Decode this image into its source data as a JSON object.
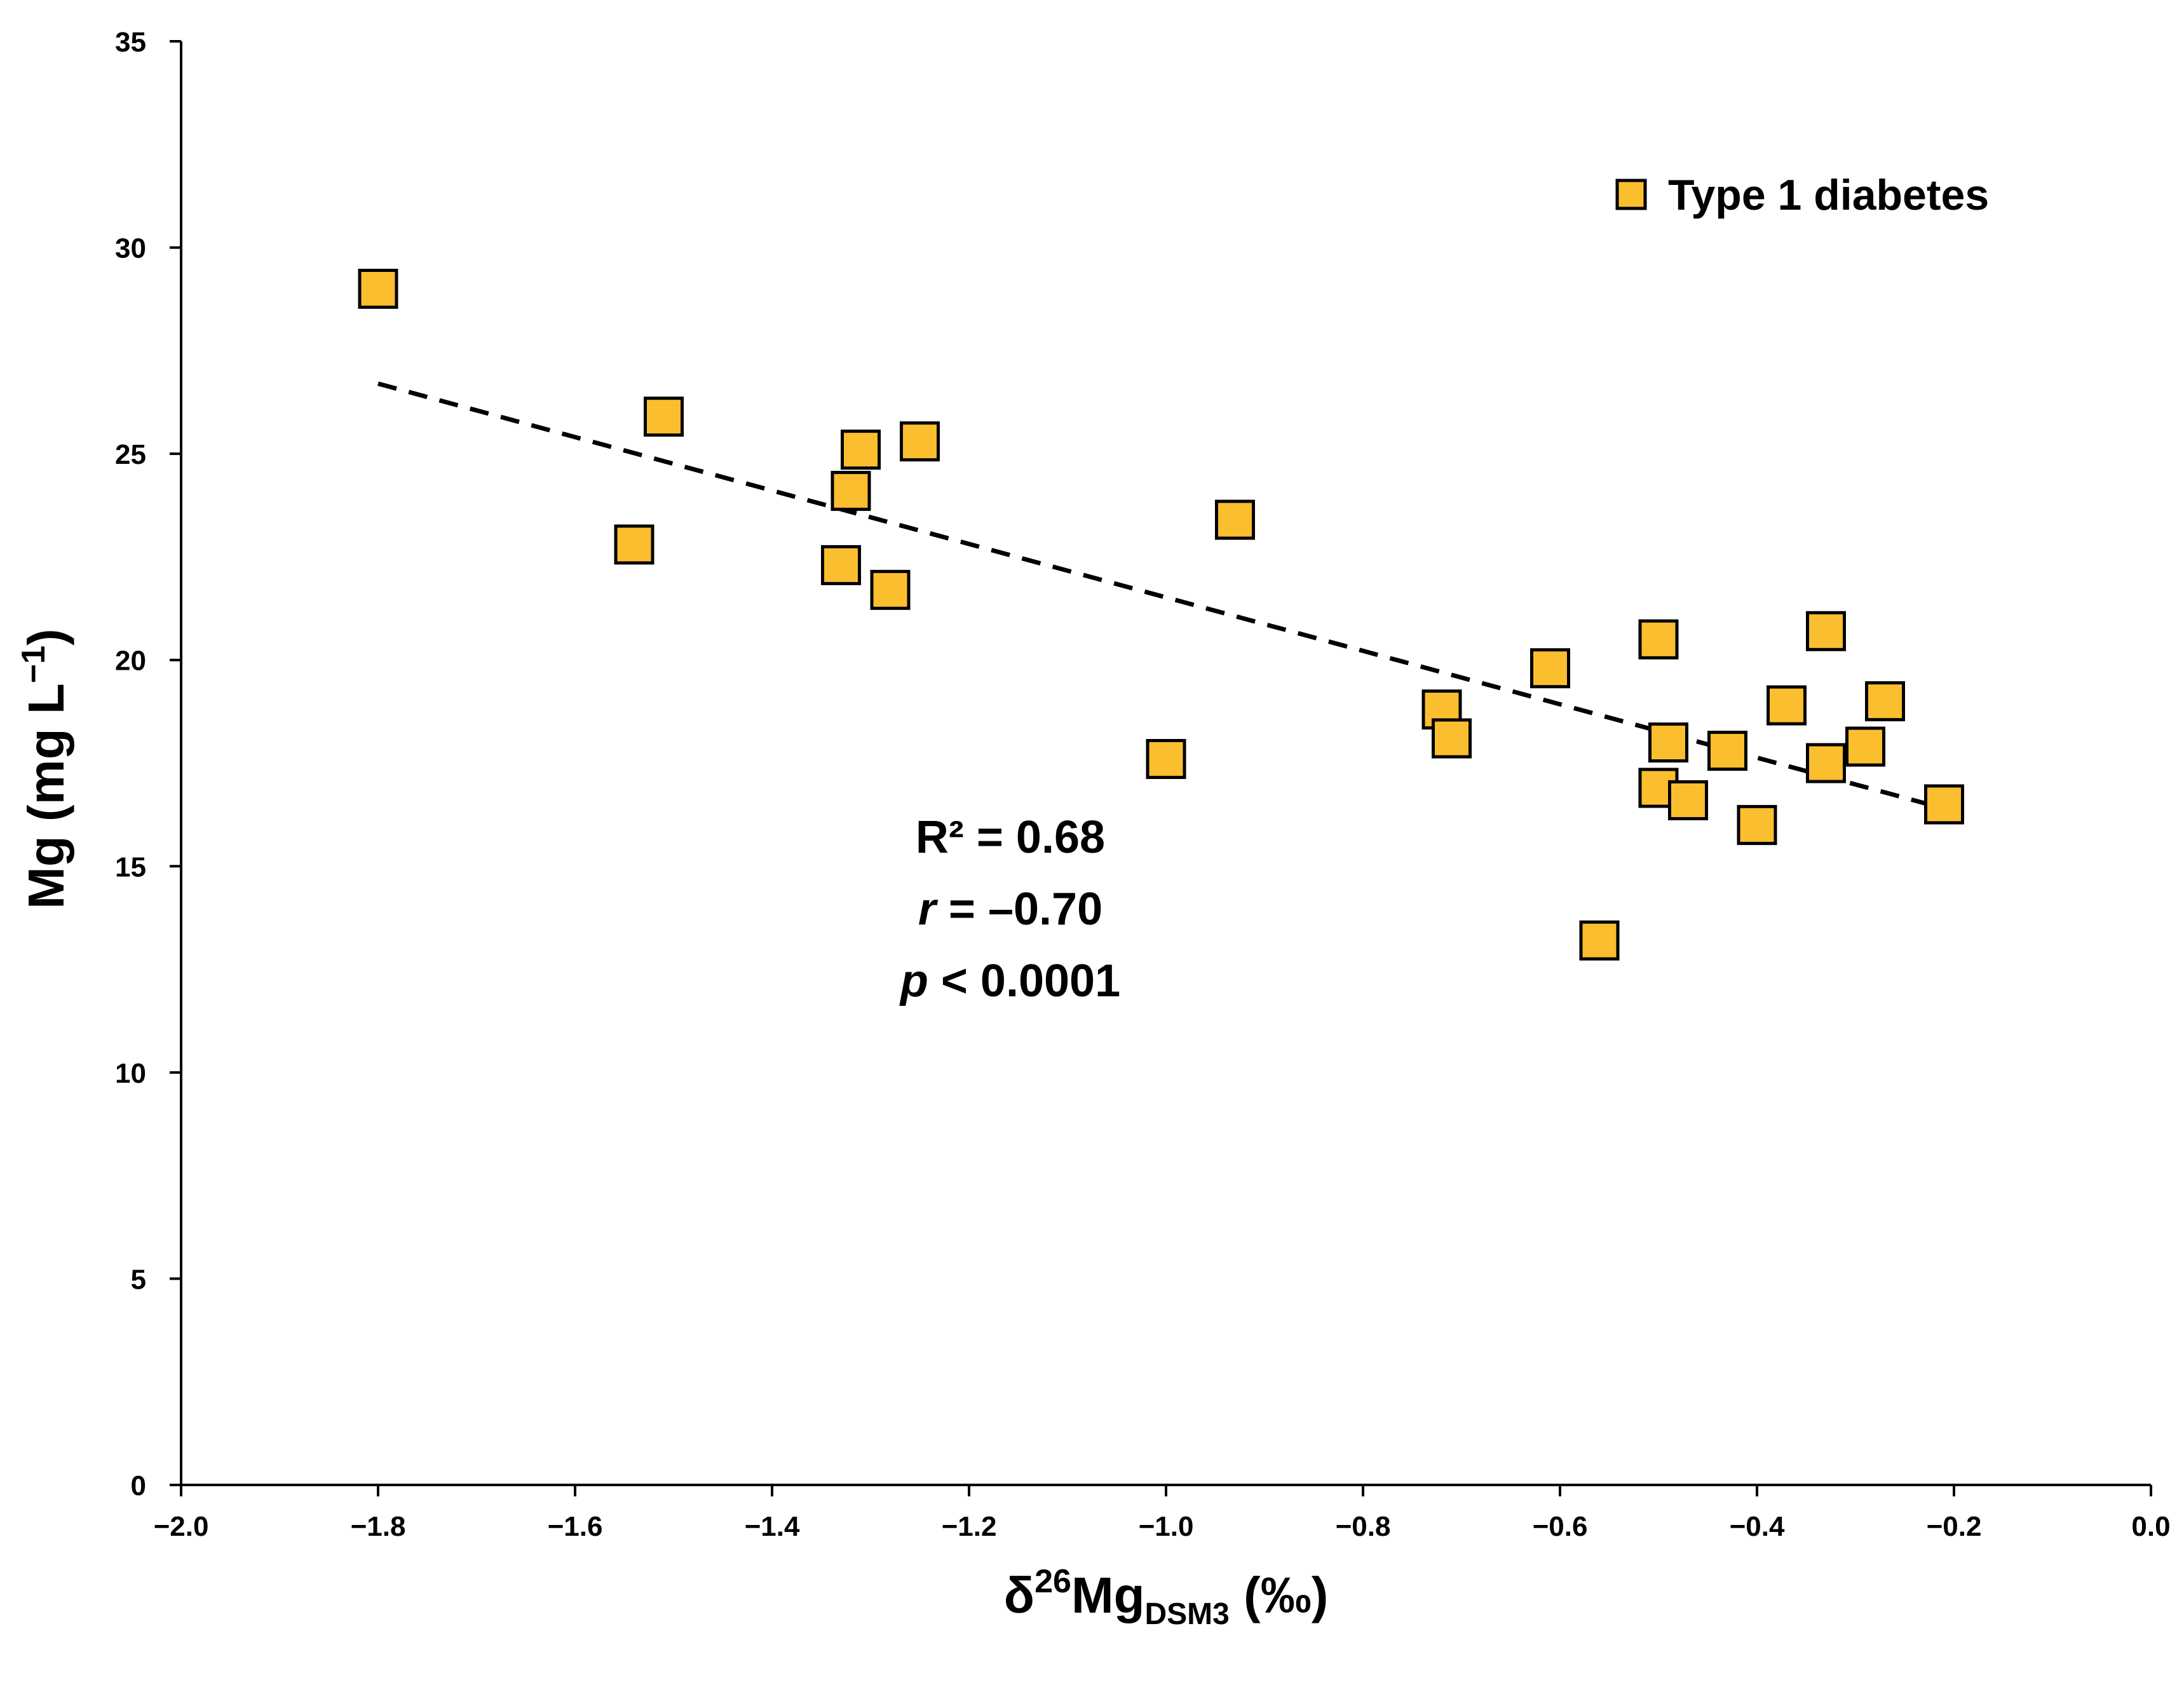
{
  "chart_data": {
    "type": "scatter",
    "title": "",
    "xlabel": {
      "main": "δ",
      "superscript": "26",
      "element": "Mg",
      "subscript": "DSM3",
      "unit": " (‰)"
    },
    "ylabel": {
      "main": "Mg (mg L",
      "superscript": "−1",
      "close": ")"
    },
    "xlim": [
      -2.0,
      0.0
    ],
    "ylim": [
      0,
      35
    ],
    "xticks": [
      -2.0,
      -1.8,
      -1.6,
      -1.4,
      -1.2,
      -1.0,
      -0.8,
      -0.6,
      -0.4,
      -0.2,
      0.0
    ],
    "xtick_labels": [
      "−2.0",
      "−1.8",
      "−1.6",
      "−1.4",
      "−1.2",
      "−1.0",
      "−0.8",
      "−0.6",
      "−0.4",
      "−0.2",
      "0.0"
    ],
    "yticks": [
      0,
      5,
      10,
      15,
      20,
      25,
      30,
      35
    ],
    "ytick_labels": [
      "0",
      "5",
      "10",
      "15",
      "20",
      "25",
      "30",
      "35"
    ],
    "grid": false,
    "legend_position": "top-right",
    "series": [
      {
        "name": "Type 1 diabetes",
        "marker": "square",
        "color": "#FBBE2E",
        "edge_color": "#000000",
        "points": [
          {
            "x": -1.8,
            "y": 29.0
          },
          {
            "x": -1.51,
            "y": 25.9
          },
          {
            "x": -1.54,
            "y": 22.8
          },
          {
            "x": -1.31,
            "y": 25.1
          },
          {
            "x": -1.32,
            "y": 24.1
          },
          {
            "x": -1.33,
            "y": 22.3
          },
          {
            "x": -1.25,
            "y": 25.3
          },
          {
            "x": -1.28,
            "y": 21.7
          },
          {
            "x": -0.93,
            "y": 23.4
          },
          {
            "x": -1.0,
            "y": 17.6
          },
          {
            "x": -0.72,
            "y": 18.8
          },
          {
            "x": -0.71,
            "y": 18.1
          },
          {
            "x": -0.61,
            "y": 19.8
          },
          {
            "x": -0.56,
            "y": 13.2
          },
          {
            "x": -0.5,
            "y": 20.5
          },
          {
            "x": -0.49,
            "y": 18.0
          },
          {
            "x": -0.5,
            "y": 16.9
          },
          {
            "x": -0.47,
            "y": 16.6
          },
          {
            "x": -0.43,
            "y": 17.8
          },
          {
            "x": -0.4,
            "y": 16.0
          },
          {
            "x": -0.37,
            "y": 18.9
          },
          {
            "x": -0.33,
            "y": 20.7
          },
          {
            "x": -0.33,
            "y": 17.5
          },
          {
            "x": -0.29,
            "y": 17.9
          },
          {
            "x": -0.27,
            "y": 19.0
          },
          {
            "x": -0.21,
            "y": 16.5
          }
        ]
      }
    ],
    "trendline": {
      "style": "dashed",
      "color": "#000000",
      "x_start": -1.8,
      "y_start": 26.7,
      "x_end": -0.21,
      "y_end": 16.4
    },
    "annotations": {
      "r2": "R² = 0.68",
      "r_symbol": "r",
      "r_value": " = –0.70",
      "p_symbol": "p",
      "p_value": " < 0.0001"
    }
  }
}
